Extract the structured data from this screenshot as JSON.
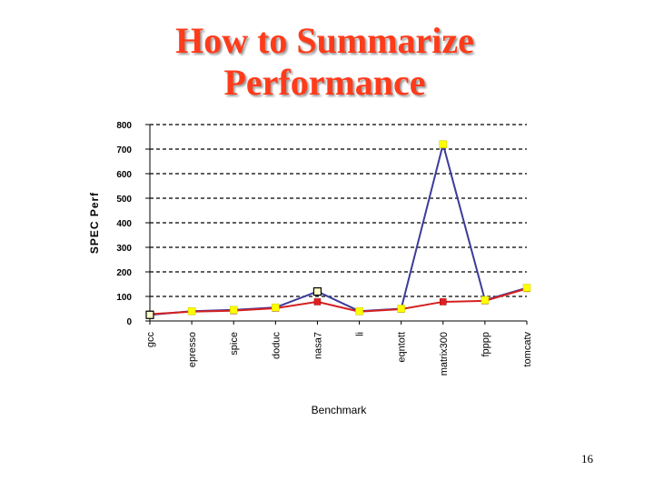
{
  "slide": {
    "title_line1": "How to Summarize",
    "title_line2": "Performance",
    "page_number": "16"
  },
  "chart_data": {
    "type": "line",
    "ylabel": "SPEC Perf",
    "xlabel": "Benchmark",
    "categories": [
      "gcc",
      "epresso",
      "spice",
      "doduc",
      "nasa7",
      "li",
      "eqntott",
      "matrix300",
      "fpppp",
      "tomcatv"
    ],
    "ylim": [
      0,
      800
    ],
    "yticks": [
      0,
      100,
      200,
      300,
      400,
      500,
      600,
      700,
      800
    ],
    "grid": "horizontal-dashed",
    "legend": "none",
    "series": [
      {
        "color": "#3c3c9a",
        "marker": "square-yellow",
        "values": [
          25,
          40,
          45,
          55,
          120,
          40,
          50,
          720,
          85,
          135
        ]
      },
      {
        "color": "#d42020",
        "marker": "square-red",
        "values": [
          28,
          38,
          42,
          52,
          78,
          38,
          48,
          78,
          82,
          132
        ]
      }
    ]
  }
}
